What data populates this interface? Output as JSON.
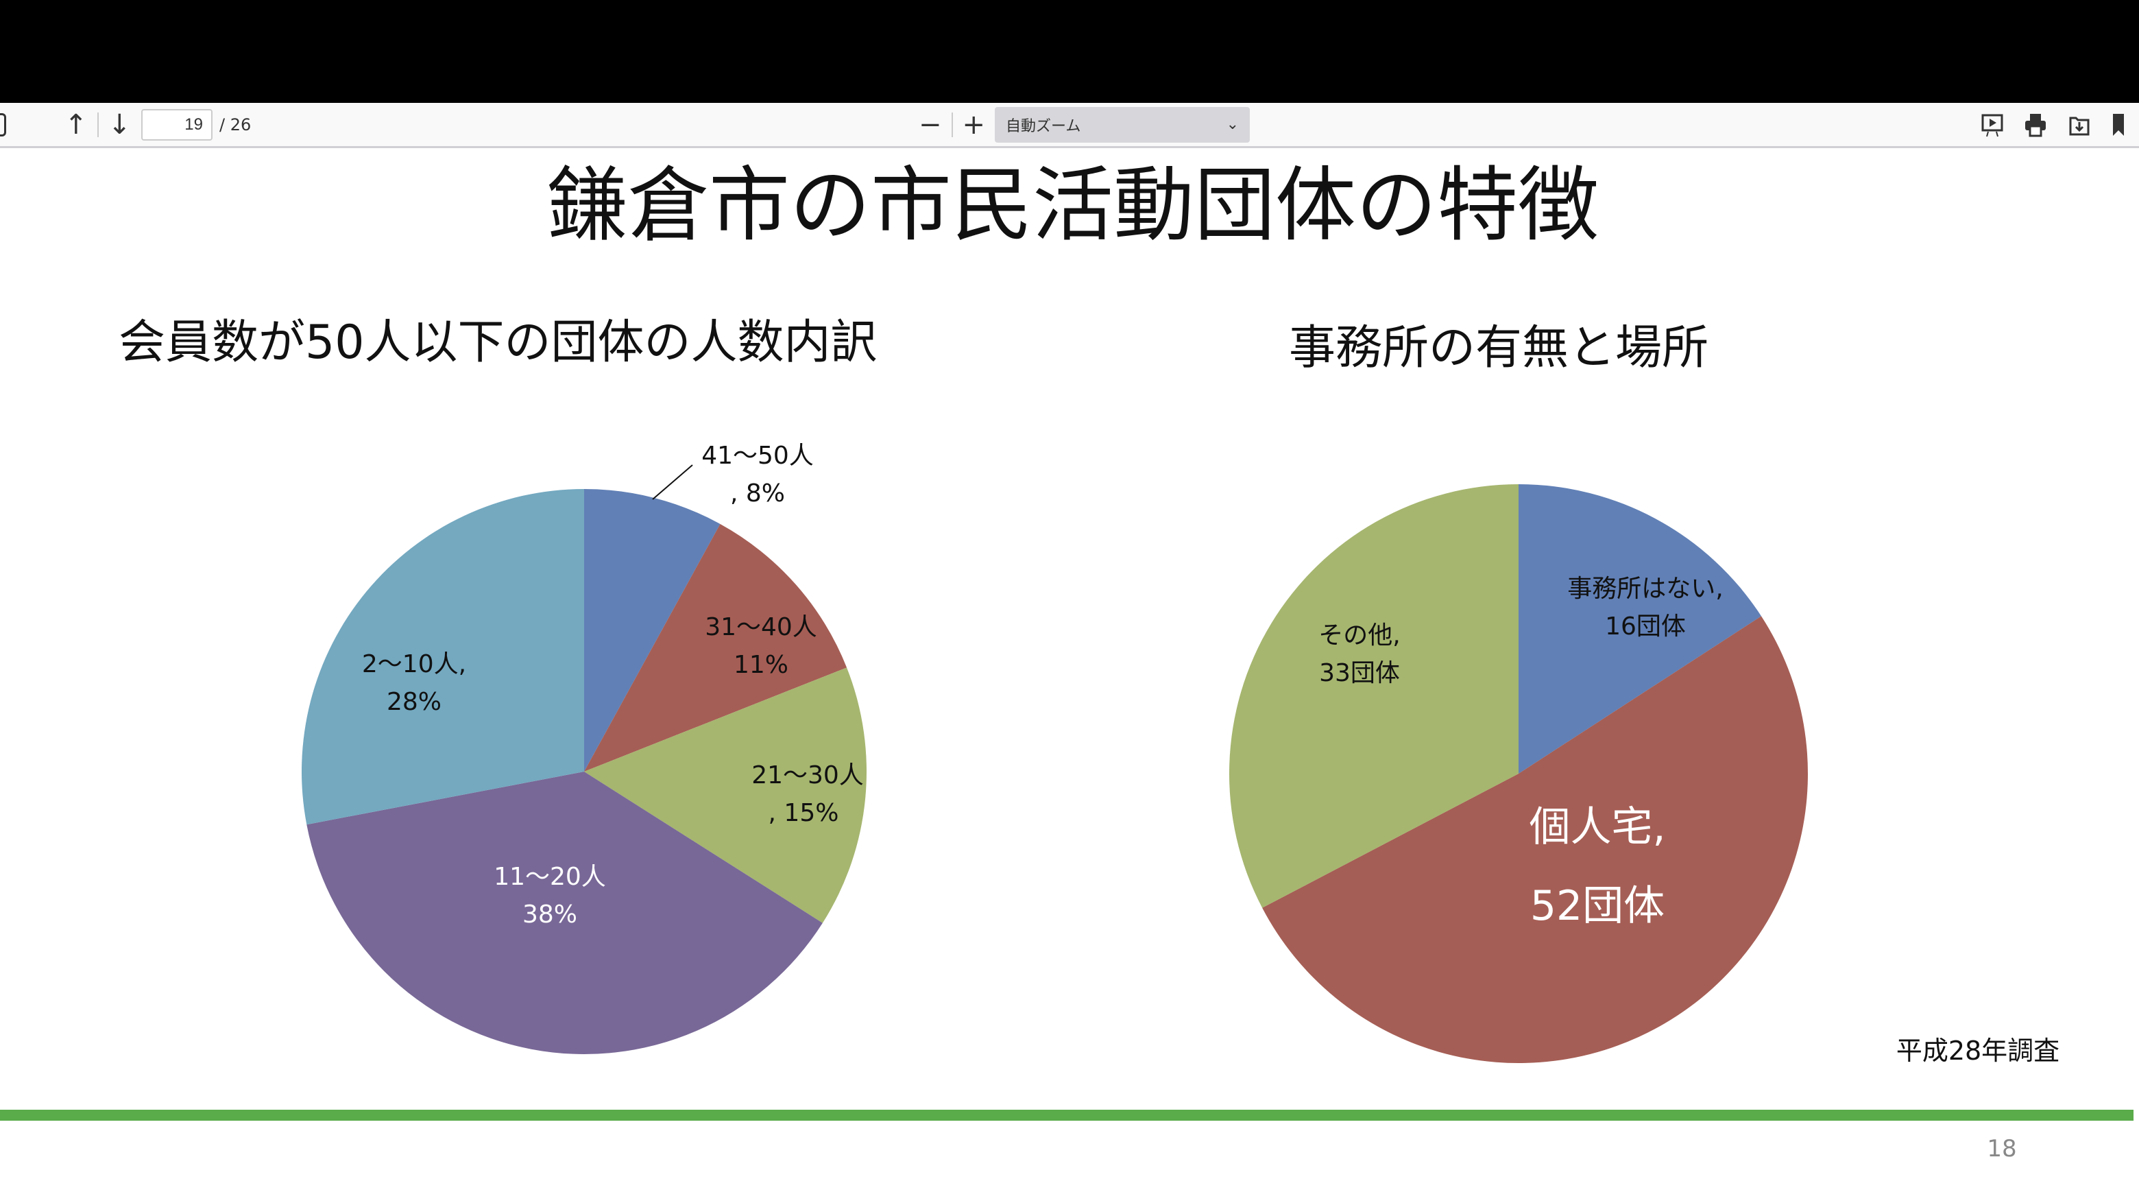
{
  "toolbar": {
    "page_current": "19",
    "page_total": "/ 26",
    "zoom_label": "自動ズーム",
    "zoom_out": "−",
    "zoom_in": "+"
  },
  "slide": {
    "title": "鎌倉市の市民活動団体の特徴",
    "footnote": "平成28年調査",
    "page_number": "18",
    "accent_line_color": "#5aab4a"
  },
  "chart_data": [
    {
      "type": "pie",
      "title": "会員数が50人以下の団体の人数内訳",
      "categories": [
        "41〜50人",
        "31〜40人",
        "21〜30人",
        "11〜20人",
        "2〜10人"
      ],
      "values": [
        8,
        11,
        15,
        38,
        28
      ],
      "unit": "%",
      "labels": [
        [
          "41〜50人",
          ", 8%"
        ],
        [
          "31〜40人",
          "11%"
        ],
        [
          "21〜30人",
          ", 15%"
        ],
        [
          "11〜20人",
          "38%"
        ],
        [
          "2〜10人,",
          "28%"
        ]
      ],
      "colors": [
        "#6180b6",
        "#a55e55",
        "#a6b66f",
        "#786897",
        "#74a9c0"
      ]
    },
    {
      "type": "pie",
      "title": "事務所の有無と場所",
      "categories": [
        "事務所はない",
        "個人宅",
        "その他"
      ],
      "values": [
        16,
        52,
        33
      ],
      "unit": "団体",
      "labels": [
        [
          "事務所はない,",
          "16団体"
        ],
        [
          "個人宅,",
          "52団体"
        ],
        [
          "その他,",
          "33団体"
        ]
      ],
      "colors": [
        "#6180b6",
        "#a55e55",
        "#a6b66f"
      ]
    }
  ]
}
